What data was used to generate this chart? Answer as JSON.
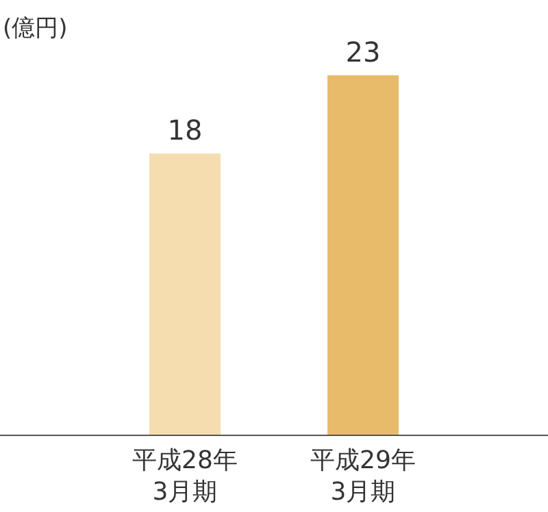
{
  "chart_data": {
    "type": "bar",
    "ylabel": "(億円)",
    "categories": [
      "平成28年\n3月期",
      "平成29年\n3月期"
    ],
    "values": [
      18,
      23
    ],
    "colors": [
      "#f5ddb0",
      "#e8bb6a"
    ],
    "data_labels": true
  }
}
